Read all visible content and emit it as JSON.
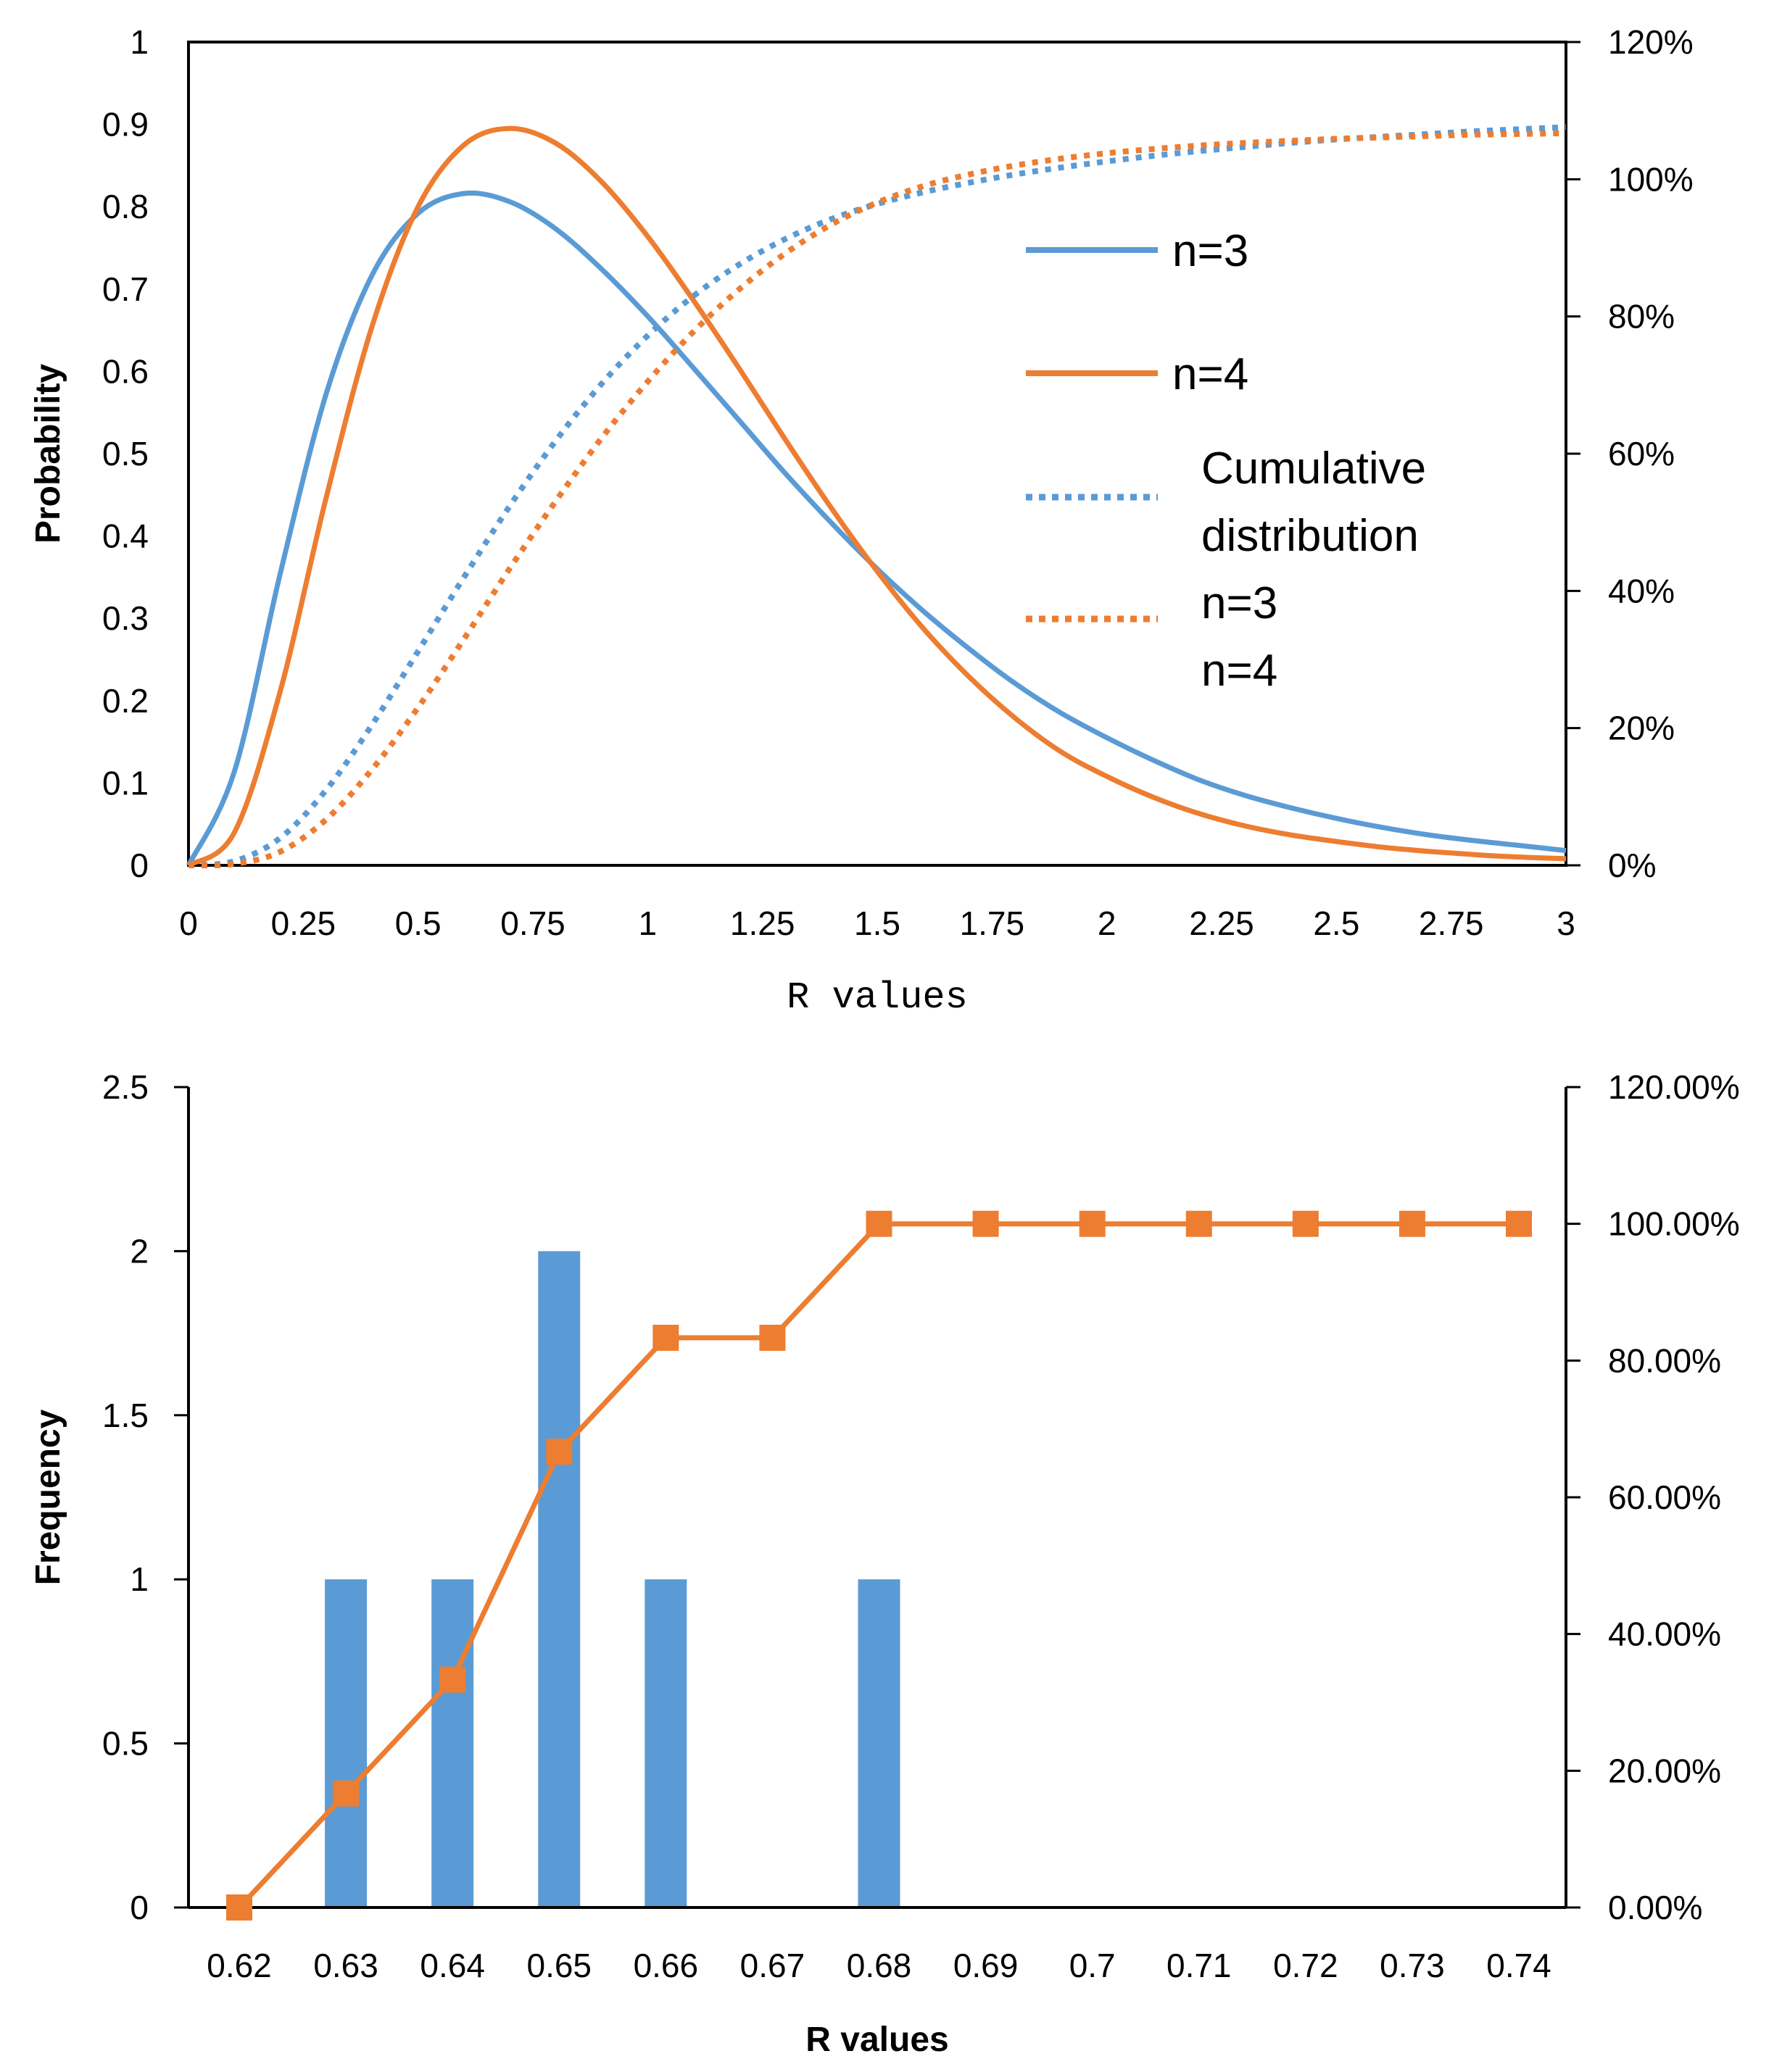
{
  "chart_data": [
    {
      "type": "line",
      "xlabel": "R values",
      "ylabel": "Probability",
      "xlim": [
        0,
        3
      ],
      "ylim": [
        0,
        1
      ],
      "y2lim": [
        0,
        1.2
      ],
      "x_ticks": [
        "0",
        "0.25",
        "0.5",
        "0.75",
        "1",
        "1.25",
        "1.5",
        "1.75",
        "2",
        "2.25",
        "2.5",
        "2.75",
        "3"
      ],
      "y_ticks": [
        "0",
        "0.1",
        "0.2",
        "0.3",
        "0.4",
        "0.5",
        "0.6",
        "0.7",
        "0.8",
        "0.9",
        "1"
      ],
      "y2_ticks": [
        "0%",
        "20%",
        "40%",
        "60%",
        "80%",
        "100%",
        "120%"
      ],
      "grid": false,
      "legend_position": "right",
      "legend": [
        "n=3",
        "n=4",
        "Cumulative distribution",
        "n=3",
        "n=4"
      ],
      "colors": {
        "n3": "#5B9BD5",
        "n4": "#ED7D31"
      },
      "series": [
        {
          "name": "n=3",
          "axis": "left",
          "style": "solid",
          "color": "#5B9BD5",
          "x": [
            0,
            0.1,
            0.2,
            0.3,
            0.4,
            0.5,
            0.6,
            0.7,
            0.8,
            0.9,
            1.0,
            1.1,
            1.2,
            1.3,
            1.4,
            1.5,
            1.6,
            1.7,
            1.8,
            1.9,
            2.0,
            2.1,
            2.2,
            2.3,
            2.4,
            2.5,
            2.6,
            2.7,
            2.8,
            2.9,
            3.0
          ],
          "y": [
            0,
            0.114,
            0.355,
            0.573,
            0.717,
            0.792,
            0.816,
            0.806,
            0.773,
            0.724,
            0.667,
            0.604,
            0.54,
            0.476,
            0.416,
            0.36,
            0.309,
            0.263,
            0.221,
            0.185,
            0.155,
            0.128,
            0.104,
            0.085,
            0.07,
            0.057,
            0.046,
            0.037,
            0.03,
            0.024,
            0.018
          ]
        },
        {
          "name": "n=4",
          "axis": "left",
          "style": "solid",
          "color": "#ED7D31",
          "x": [
            0,
            0.1,
            0.2,
            0.3,
            0.4,
            0.5,
            0.6,
            0.7,
            0.8,
            0.9,
            1.0,
            1.1,
            1.2,
            1.3,
            1.4,
            1.5,
            1.6,
            1.7,
            1.8,
            1.9,
            2.0,
            2.1,
            2.2,
            2.3,
            2.4,
            2.5,
            2.6,
            2.7,
            2.8,
            2.9,
            3.0
          ],
          "y": [
            0,
            0.04,
            0.212,
            0.447,
            0.655,
            0.8,
            0.875,
            0.895,
            0.877,
            0.83,
            0.764,
            0.686,
            0.603,
            0.517,
            0.434,
            0.357,
            0.288,
            0.229,
            0.179,
            0.138,
            0.108,
            0.083,
            0.063,
            0.048,
            0.037,
            0.029,
            0.022,
            0.017,
            0.013,
            0.01,
            0.008
          ]
        },
        {
          "name": "Cumulative distribution n=3",
          "axis": "right",
          "style": "dotted",
          "color": "#5B9BD5",
          "x": [
            0,
            0.1,
            0.2,
            0.3,
            0.4,
            0.5,
            0.6,
            0.7,
            0.8,
            0.9,
            1.0,
            1.1,
            1.2,
            1.3,
            1.4,
            1.5,
            1.6,
            1.7,
            1.8,
            1.9,
            2.0,
            2.1,
            2.2,
            2.3,
            2.4,
            2.5,
            2.6,
            2.7,
            2.8,
            2.9,
            3.0
          ],
          "y": [
            0,
            0.006,
            0.04,
            0.11,
            0.205,
            0.312,
            0.42,
            0.524,
            0.619,
            0.702,
            0.772,
            0.83,
            0.876,
            0.913,
            0.942,
            0.964,
            0.981,
            0.995,
            1.007,
            1.017,
            1.026,
            1.034,
            1.041,
            1.047,
            1.053,
            1.058,
            1.062,
            1.066,
            1.07,
            1.073,
            1.076
          ]
        },
        {
          "name": "Cumulative distribution n=4",
          "axis": "right",
          "style": "dotted",
          "color": "#ED7D31",
          "x": [
            0,
            0.1,
            0.2,
            0.3,
            0.4,
            0.5,
            0.6,
            0.7,
            0.8,
            0.9,
            1.0,
            1.1,
            1.2,
            1.3,
            1.4,
            1.5,
            1.6,
            1.7,
            1.8,
            1.9,
            2.0,
            2.1,
            2.2,
            2.3,
            2.4,
            2.5,
            2.6,
            2.7,
            2.8,
            2.9,
            3.0
          ],
          "y": [
            0,
            0.002,
            0.02,
            0.067,
            0.14,
            0.23,
            0.33,
            0.433,
            0.531,
            0.623,
            0.705,
            0.778,
            0.84,
            0.892,
            0.934,
            0.966,
            0.99,
            1.007,
            1.02,
            1.03,
            1.038,
            1.044,
            1.049,
            1.053,
            1.056,
            1.059,
            1.061,
            1.063,
            1.065,
            1.066,
            1.067
          ]
        }
      ]
    },
    {
      "type": "bar",
      "xlabel": "R values",
      "ylabel": "Frequency",
      "categories": [
        "0.62",
        "0.63",
        "0.64",
        "0.65",
        "0.66",
        "0.67",
        "0.68",
        "0.69",
        "0.7",
        "0.71",
        "0.72",
        "0.73",
        "0.74"
      ],
      "ylim": [
        0,
        2.5
      ],
      "y2lim": [
        0,
        1.2
      ],
      "y_ticks": [
        "0",
        "0.5",
        "1",
        "1.5",
        "2",
        "2.5"
      ],
      "y2_ticks": [
        "0.00%",
        "20.00%",
        "40.00%",
        "60.00%",
        "80.00%",
        "100.00%",
        "120.00%"
      ],
      "grid": false,
      "colors": {
        "bar": "#5B9BD5",
        "line": "#ED7D31"
      },
      "series": [
        {
          "name": "",
          "type": "bar",
          "axis": "left",
          "values": [
            0,
            1,
            1,
            2,
            1,
            0,
            1,
            0,
            0,
            0,
            0,
            0,
            0
          ]
        },
        {
          "name": "",
          "type": "line",
          "axis": "right",
          "marker": "square",
          "values": [
            0,
            0.1667,
            0.3333,
            0.6667,
            0.8333,
            0.8333,
            1.0,
            1.0,
            1.0,
            1.0,
            1.0,
            1.0,
            1.0
          ]
        }
      ]
    }
  ]
}
